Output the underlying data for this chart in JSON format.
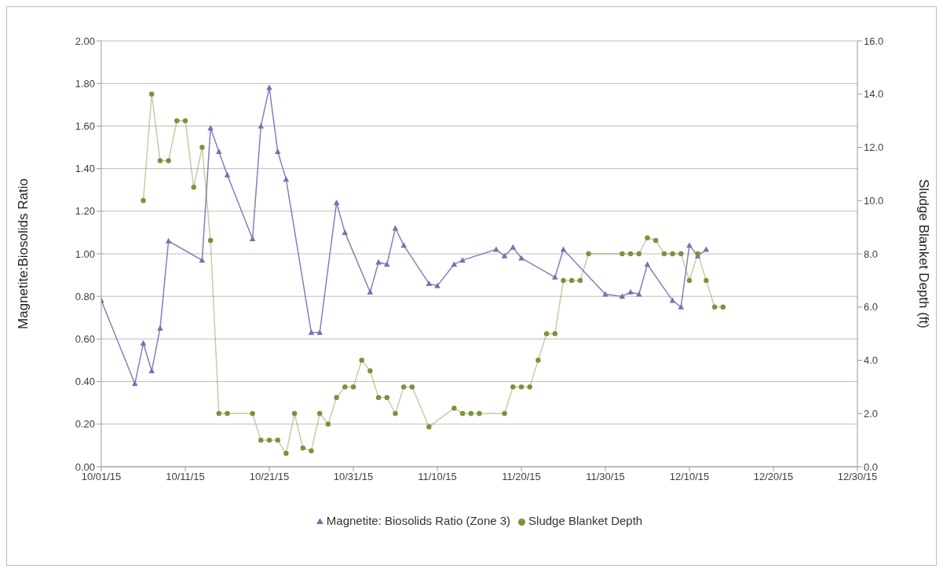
{
  "chart_data": {
    "type": "line",
    "ylabel": "Magnetite:Biosolids Ratio",
    "y2label": "Sludge Blanket  Depth (ft)",
    "xlim": [
      "--10-01",
      "--12-30"
    ],
    "xticks": [
      {
        "value": "--10-01",
        "label": "10/01/15"
      },
      {
        "value": "--10-11",
        "label": "10/11/15"
      },
      {
        "value": "--10-21",
        "label": "10/21/15"
      },
      {
        "value": "--10-31",
        "label": "10/31/15"
      },
      {
        "value": "--11-10",
        "label": "11/10/15"
      },
      {
        "value": "--11-20",
        "label": "11/20/15"
      },
      {
        "value": "--11-30",
        "label": "11/30/15"
      },
      {
        "value": "--12-10",
        "label": "12/10/15"
      },
      {
        "value": "--12-20",
        "label": "12/20/15"
      },
      {
        "value": "--12-30",
        "label": "12/30/15"
      }
    ],
    "ylim": [
      0,
      2
    ],
    "yticks": [
      {
        "value": 0,
        "label": "0.00"
      },
      {
        "value": 0.2,
        "label": "0.20"
      },
      {
        "value": 0.4,
        "label": "0.40"
      },
      {
        "value": 0.6,
        "label": "0.60"
      },
      {
        "value": 0.8,
        "label": "0.80"
      },
      {
        "value": 1,
        "label": "1.00"
      },
      {
        "value": 1.2,
        "label": "1.20"
      },
      {
        "value": 1.4,
        "label": "1.40"
      },
      {
        "value": 1.6,
        "label": "1.60"
      },
      {
        "value": 1.8,
        "label": "1.80"
      },
      {
        "value": 2,
        "label": "2.00"
      }
    ],
    "y2lim": [
      0,
      16
    ],
    "y2ticks": [
      {
        "value": 0,
        "label": "0.0"
      },
      {
        "value": 2,
        "label": "2.0"
      },
      {
        "value": 4,
        "label": "4.0"
      },
      {
        "value": 6,
        "label": "6.0"
      },
      {
        "value": 8,
        "label": "8.0"
      },
      {
        "value": 10,
        "label": "10.0"
      },
      {
        "value": 12,
        "label": "12.0"
      },
      {
        "value": 14,
        "label": "14.0"
      },
      {
        "value": 16,
        "label": "16.0"
      }
    ],
    "grid": "y",
    "legend": "bottom",
    "line_style": "solid",
    "series": [
      {
        "name": "Magnetite: Biosolids Ratio (Zone 3)",
        "color": "#7b6fb0",
        "marker": "triangle",
        "x": [
          "--10-01",
          "--10-05",
          "--10-06",
          "--10-07",
          "--10-08",
          "--10-09",
          "--10-13",
          "--10-14",
          "--10-15",
          "--10-16",
          "--10-19",
          "--10-20",
          "--10-21",
          "--10-22",
          "--10-23",
          "--10-26",
          "--10-27",
          "--10-29",
          "--10-30",
          "--11-02",
          "--11-03",
          "--11-04",
          "--11-05",
          "--11-06",
          "--11-09",
          "--11-10",
          "--11-12",
          "--11-13",
          "--11-17",
          "--11-18",
          "--11-19",
          "--11-20",
          "--11-24",
          "--11-25",
          "--11-30",
          "--12-02",
          "--12-03",
          "--12-04",
          "--12-05",
          "--12-08",
          "--12-09",
          "--12-10",
          "--12-11",
          "--12-12"
        ],
        "values": [
          0.78,
          0.39,
          0.58,
          0.45,
          0.65,
          1.06,
          0.97,
          1.59,
          1.48,
          1.37,
          1.07,
          1.6,
          1.78,
          1.48,
          1.35,
          0.63,
          0.63,
          1.24,
          1.1,
          0.82,
          0.96,
          0.95,
          1.12,
          1.04,
          0.86,
          0.85,
          0.95,
          0.97,
          1.02,
          0.99,
          1.03,
          0.98,
          0.89,
          1.02,
          0.81,
          0.8,
          0.82,
          0.81,
          0.95,
          0.78,
          0.75,
          1.04,
          0.99,
          1.02
        ]
      },
      {
        "name": "Sludge Blanket Depth",
        "color": "#77933c",
        "marker": "circle",
        "axis": "y2",
        "x": [
          "--10-06",
          "--10-07",
          "--10-08",
          "--10-09",
          "--10-10",
          "--10-11",
          "--10-12",
          "--10-13",
          "--10-14",
          "--10-15",
          "--10-16",
          "--10-19",
          "--10-20",
          "--10-21",
          "--10-22",
          "--10-23",
          "--10-24",
          "--10-25",
          "--10-26",
          "--10-27",
          "--10-28",
          "--10-29",
          "--10-30",
          "--10-31",
          "--11-01",
          "--11-02",
          "--11-03",
          "--11-04",
          "--11-05",
          "--11-06",
          "--11-07",
          "--11-09",
          "--11-12",
          "--11-13",
          "--11-14",
          "--11-15",
          "--11-18",
          "--11-19",
          "--11-20",
          "--11-21",
          "--11-22",
          "--11-23",
          "--11-24",
          "--11-25",
          "--11-26",
          "--11-27",
          "--11-28",
          "--12-02",
          "--12-03",
          "--12-04",
          "--12-05",
          "--12-06",
          "--12-07",
          "--12-08",
          "--12-09",
          "--12-10",
          "--12-11",
          "--12-12",
          "--12-13",
          "--12-14"
        ],
        "values": [
          10.0,
          14.0,
          11.5,
          11.5,
          13.0,
          13.0,
          10.5,
          12.0,
          8.5,
          2.0,
          2.0,
          2.0,
          1.0,
          1.0,
          1.0,
          0.5,
          2.0,
          0.7,
          0.6,
          2.0,
          1.6,
          2.6,
          3.0,
          3.0,
          4.0,
          3.6,
          2.6,
          2.6,
          2.0,
          3.0,
          3.0,
          1.5,
          2.2,
          2.0,
          2.0,
          2.0,
          2.0,
          3.0,
          3.0,
          3.0,
          4.0,
          5.0,
          5.0,
          7.0,
          7.0,
          7.0,
          8.0,
          8.0,
          8.0,
          8.0,
          8.6,
          8.5,
          8.0,
          8.0,
          8.0,
          7.0,
          8.0,
          7.0,
          6.0,
          6.0
        ]
      }
    ]
  }
}
